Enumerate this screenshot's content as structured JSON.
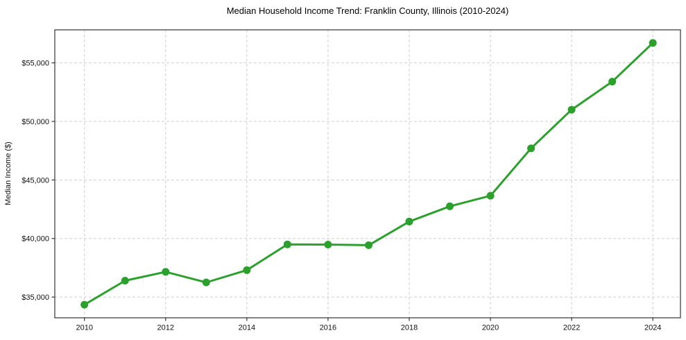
{
  "window": {
    "background": "#ffffff"
  },
  "colors": {
    "line": "#2ca02c",
    "marker": "#2ca02c",
    "grid": "#cfcfcf",
    "spine": "#333333",
    "text": "#000000",
    "background": "#ffffff"
  },
  "chart_data": {
    "type": "line",
    "title": "Median Household Income Trend: Franklin County, Illinois (2010-2024)",
    "xlabel": "",
    "ylabel": "Median Income ($)",
    "x": [
      2010,
      2011,
      2012,
      2013,
      2014,
      2015,
      2016,
      2017,
      2018,
      2019,
      2020,
      2021,
      2022,
      2023,
      2024
    ],
    "values": [
      34350,
      36400,
      37150,
      36250,
      37300,
      39500,
      39480,
      39430,
      41450,
      42750,
      43650,
      47700,
      51000,
      53400,
      56700
    ],
    "series_name": "Median Household Income",
    "xticks": [
      2010,
      2012,
      2014,
      2016,
      2018,
      2020,
      2022,
      2024
    ],
    "yticks": [
      35000,
      40000,
      45000,
      50000,
      55000
    ],
    "ytick_labels": [
      "$35,000",
      "$40,000",
      "$45,000",
      "$50,000",
      "$55,000"
    ],
    "xlim": [
      2009.27,
      2024.68
    ],
    "ylim": [
      33230,
      57820
    ],
    "grid": true,
    "grid_style": "dashed",
    "legend": "none",
    "marker": "circle",
    "line_color": "#2ca02c"
  }
}
